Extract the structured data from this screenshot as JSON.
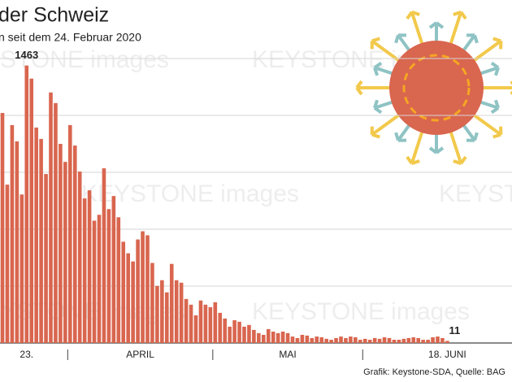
{
  "chart_data": {
    "type": "bar",
    "title": "der Schweiz",
    "subtitle": "n seit dem 24. Februar 2020",
    "source": "Grafik: Keystone-SDA, Quelle: BAG",
    "watermark": "KEYSTONE images",
    "color": "#d9664f",
    "grid": true,
    "ylim": [
      0,
      1500
    ],
    "yticks": [
      0,
      300,
      600,
      900,
      1200,
      1500
    ],
    "month_labels": [
      "APRIL",
      "MAI"
    ],
    "categories": [
      null,
      null,
      null,
      null,
      null,
      "23.",
      null,
      null,
      null,
      null,
      null,
      null,
      null,
      null,
      null,
      null,
      null,
      null,
      null,
      null,
      null,
      null,
      null,
      null,
      null,
      null,
      null,
      null,
      null,
      null,
      null,
      null,
      null,
      null,
      null,
      null,
      null,
      null,
      null,
      null,
      null,
      null,
      null,
      null,
      null,
      null,
      null,
      null,
      null,
      null,
      null,
      null,
      null,
      null,
      null,
      null,
      null,
      null,
      null,
      null,
      null,
      null,
      null,
      null,
      null,
      null,
      null,
      null,
      null,
      null,
      null,
      null,
      null,
      null,
      null,
      null,
      null,
      null,
      null,
      null,
      null,
      null,
      null,
      null,
      null,
      null,
      null,
      null,
      null,
      null,
      null,
      null,
      "18. JUNI"
    ],
    "values": [
      1213,
      835,
      1149,
      1063,
      783,
      1463,
      1394,
      1136,
      1076,
      891,
      1321,
      1265,
      1050,
      955,
      1149,
      1041,
      904,
      762,
      805,
      645,
      676,
      921,
      706,
      775,
      663,
      534,
      473,
      430,
      546,
      589,
      568,
      422,
      301,
      331,
      267,
      417,
      331,
      318,
      232,
      202,
      146,
      224,
      202,
      189,
      215,
      159,
      129,
      86,
      120,
      112,
      86,
      95,
      69,
      52,
      43,
      73,
      60,
      52,
      60,
      52,
      34,
      26,
      43,
      39,
      26,
      34,
      30,
      22,
      17,
      26,
      34,
      26,
      34,
      30,
      17,
      22,
      17,
      26,
      22,
      30,
      26,
      17,
      17,
      22,
      26,
      30,
      26,
      17,
      17,
      30,
      34,
      26,
      11
    ]
  }
}
